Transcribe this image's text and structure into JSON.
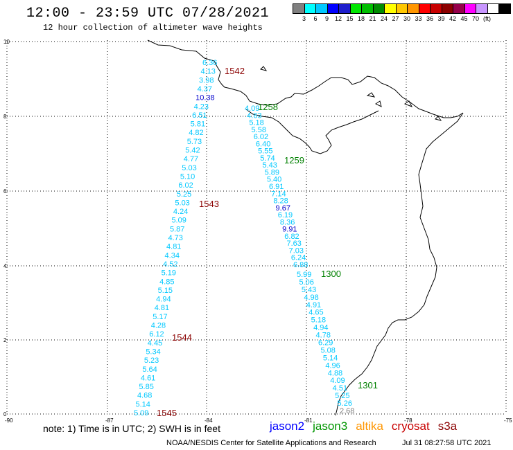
{
  "header": {
    "title": "12:00 - 23:59 UTC 07/28/2021",
    "subtitle": "12 hour collection of altimeter wave heights"
  },
  "colorbar": {
    "colors": [
      "#808080",
      "#00ffff",
      "#00c8ff",
      "#0000ff",
      "#1e1ecc",
      "#00e600",
      "#00be00",
      "#008c00",
      "#ffff00",
      "#ffc800",
      "#ff9600",
      "#ff0000",
      "#c80000",
      "#8c0000",
      "#96004b",
      "#ff00ff",
      "#c896ff",
      "#ffffff",
      "#000000"
    ],
    "labels": [
      "3",
      "6",
      "9",
      "12",
      "15",
      "18",
      "21",
      "24",
      "27",
      "30",
      "33",
      "36",
      "39",
      "42",
      "45",
      "70",
      "(ft)"
    ]
  },
  "axes": {
    "x_ticks": [
      "-90",
      "-87",
      "-84",
      "-81",
      "-78",
      "-75"
    ],
    "y_ticks": [
      "0",
      "2",
      "4",
      "6",
      "8",
      "10"
    ]
  },
  "passes": [
    {
      "label": "1542",
      "color": "#8b0000"
    },
    {
      "label": "1543",
      "color": "#8b0000"
    },
    {
      "label": "1544",
      "color": "#8b0000"
    },
    {
      "label": "1545",
      "color": "#8b0000"
    },
    {
      "label": "1258",
      "color": "#008000"
    },
    {
      "label": "1259",
      "color": "#008000"
    },
    {
      "label": "1300",
      "color": "#008000"
    },
    {
      "label": "1301",
      "color": "#008000"
    }
  ],
  "track_west": [
    {
      "v": "6.36",
      "c": "#00c8ff"
    },
    {
      "v": "4.13",
      "c": "#00c8ff"
    },
    {
      "v": "3.98",
      "c": "#00c8ff"
    },
    {
      "v": "4.37",
      "c": "#00c8ff"
    },
    {
      "v": "10.38",
      "c": "#0000cc"
    },
    {
      "v": "4.23",
      "c": "#00c8ff"
    },
    {
      "v": "6.51",
      "c": "#00c8ff"
    },
    {
      "v": "5.81",
      "c": "#00c8ff"
    },
    {
      "v": "4.82",
      "c": "#00c8ff"
    },
    {
      "v": "5.73",
      "c": "#00c8ff"
    },
    {
      "v": "5.42",
      "c": "#00c8ff"
    },
    {
      "v": "4.77",
      "c": "#00c8ff"
    },
    {
      "v": "5.03",
      "c": "#00c8ff"
    },
    {
      "v": "5.10",
      "c": "#00c8ff"
    },
    {
      "v": "6.02",
      "c": "#00c8ff"
    },
    {
      "v": "5.25",
      "c": "#00c8ff"
    },
    {
      "v": "5.03",
      "c": "#00c8ff"
    },
    {
      "v": "4.24",
      "c": "#00c8ff"
    },
    {
      "v": "5.09",
      "c": "#00c8ff"
    },
    {
      "v": "5.87",
      "c": "#00c8ff"
    },
    {
      "v": "4.73",
      "c": "#00c8ff"
    },
    {
      "v": "4.81",
      "c": "#00c8ff"
    },
    {
      "v": "4.34",
      "c": "#00c8ff"
    },
    {
      "v": "4.52",
      "c": "#00c8ff"
    },
    {
      "v": "5.19",
      "c": "#00c8ff"
    },
    {
      "v": "4.85",
      "c": "#00c8ff"
    },
    {
      "v": "5.15",
      "c": "#00c8ff"
    },
    {
      "v": "4.94",
      "c": "#00c8ff"
    },
    {
      "v": "4.81",
      "c": "#00c8ff"
    },
    {
      "v": "5.17",
      "c": "#00c8ff"
    },
    {
      "v": "4.28",
      "c": "#00c8ff"
    },
    {
      "v": "6.12",
      "c": "#00c8ff"
    },
    {
      "v": "4.45",
      "c": "#00c8ff"
    },
    {
      "v": "5.34",
      "c": "#00c8ff"
    },
    {
      "v": "5.23",
      "c": "#00c8ff"
    },
    {
      "v": "5.64",
      "c": "#00c8ff"
    },
    {
      "v": "4.61",
      "c": "#00c8ff"
    },
    {
      "v": "5.85",
      "c": "#00c8ff"
    },
    {
      "v": "4.68",
      "c": "#00c8ff"
    },
    {
      "v": "5.14",
      "c": "#00c8ff"
    },
    {
      "v": "5.09",
      "c": "#00c8ff"
    }
  ],
  "track_east_upper": [
    {
      "v": "4.09",
      "c": "#00c8ff"
    },
    {
      "v": "4.63",
      "c": "#00c8ff"
    },
    {
      "v": "5.18",
      "c": "#00c8ff"
    },
    {
      "v": "5.58",
      "c": "#00c8ff"
    },
    {
      "v": "6.02",
      "c": "#00c8ff"
    },
    {
      "v": "6.40",
      "c": "#00c8ff"
    },
    {
      "v": "5.55",
      "c": "#00c8ff"
    },
    {
      "v": "5.74",
      "c": "#00c8ff"
    },
    {
      "v": "5.43",
      "c": "#00c8ff"
    },
    {
      "v": "5.89",
      "c": "#00c8ff"
    },
    {
      "v": "5.40",
      "c": "#00c8ff"
    },
    {
      "v": "6.91",
      "c": "#00c8ff"
    },
    {
      "v": "7.14",
      "c": "#00c8ff"
    },
    {
      "v": "8.28",
      "c": "#00c8ff"
    },
    {
      "v": "9.67",
      "c": "#0000cc"
    },
    {
      "v": "6.19",
      "c": "#00c8ff"
    },
    {
      "v": "8.36",
      "c": "#00c8ff"
    },
    {
      "v": "9.91",
      "c": "#0000cc"
    },
    {
      "v": "6.82",
      "c": "#00c8ff"
    },
    {
      "v": "7.63",
      "c": "#00c8ff"
    },
    {
      "v": "7.03",
      "c": "#00c8ff"
    },
    {
      "v": "6.24",
      "c": "#00c8ff"
    },
    {
      "v": "6.88",
      "c": "#00c8ff"
    }
  ],
  "track_east_lower": [
    {
      "v": "5.99",
      "c": "#00c8ff"
    },
    {
      "v": "5.06",
      "c": "#00c8ff"
    },
    {
      "v": "5.43",
      "c": "#00c8ff"
    },
    {
      "v": "4.98",
      "c": "#00c8ff"
    },
    {
      "v": "4.91",
      "c": "#00c8ff"
    },
    {
      "v": "4.65",
      "c": "#00c8ff"
    },
    {
      "v": "5.18",
      "c": "#00c8ff"
    },
    {
      "v": "4.94",
      "c": "#00c8ff"
    },
    {
      "v": "4.78",
      "c": "#00c8ff"
    },
    {
      "v": "6.29",
      "c": "#00c8ff"
    },
    {
      "v": "5.08",
      "c": "#00c8ff"
    },
    {
      "v": "5.14",
      "c": "#00c8ff"
    },
    {
      "v": "4.96",
      "c": "#00c8ff"
    },
    {
      "v": "4.88",
      "c": "#00c8ff"
    },
    {
      "v": "4.09",
      "c": "#00c8ff"
    },
    {
      "v": "4.51",
      "c": "#00c8ff"
    },
    {
      "v": "5.25",
      "c": "#00c8ff"
    },
    {
      "v": "5.26",
      "c": "#00c8ff"
    },
    {
      "v": "2.68",
      "c": "#808080"
    }
  ],
  "footer": {
    "note": "note: 1) Time is in UTC; 2) SWH is in feet",
    "legend": [
      {
        "name": "jason2",
        "color": "#0000ff"
      },
      {
        "name": "jason3",
        "color": "#009600"
      },
      {
        "name": "altika",
        "color": "#ff9600"
      },
      {
        "name": "cryosat",
        "color": "#c80000"
      },
      {
        "name": "s3a",
        "color": "#8b0000"
      }
    ],
    "credit": "NOAA/NESDIS Center for Satellite Applications and Research",
    "timestamp": "Jul 31 08:27:58 UTC 2021"
  }
}
